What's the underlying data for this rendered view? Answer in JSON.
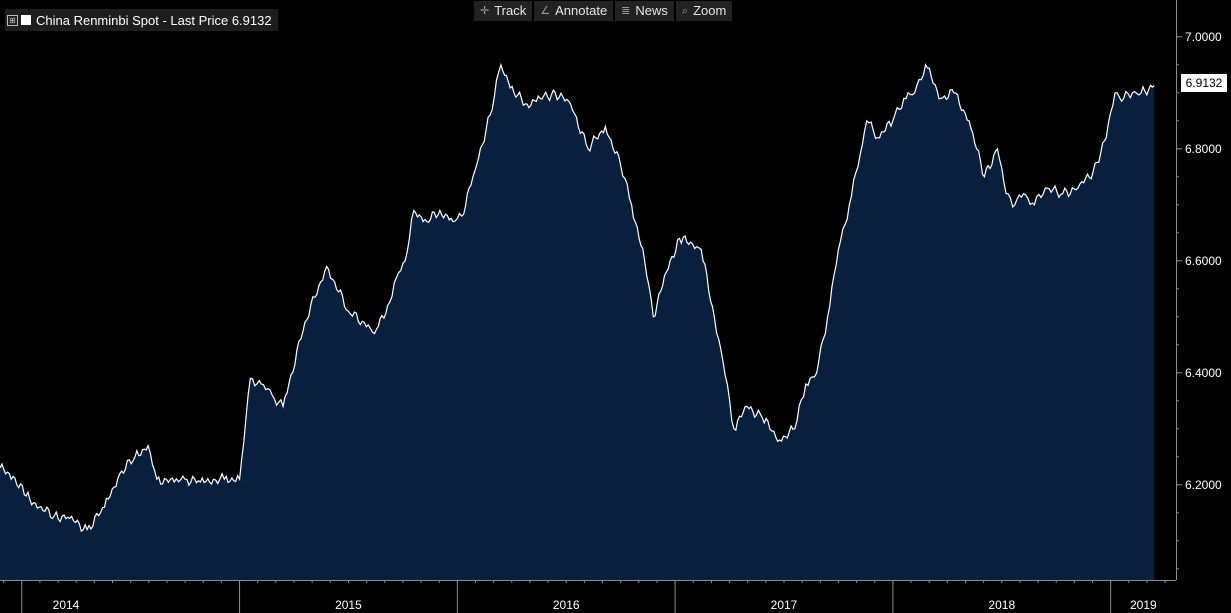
{
  "legend": {
    "expand_glyph": "⊞",
    "label": "China Renminbi Spot - Last Price 6.9132"
  },
  "toolbar": [
    {
      "icon": "✛",
      "label": "Track"
    },
    {
      "icon": "∠",
      "label": "Annotate"
    },
    {
      "icon": "≣",
      "label": "News"
    },
    {
      "icon": "⌕",
      "label": "Zoom"
    }
  ],
  "last_price_badge": "6.9132",
  "colors": {
    "background": "#000000",
    "area_fill": "#081f3d",
    "line": "#ffffff",
    "axis": "#8a8a8a"
  },
  "chart_data": {
    "type": "area",
    "title": "China Renminbi Spot - Last Price 6.9132",
    "xlabel": "",
    "ylabel": "",
    "xlim": [
      2013.9,
      2019.3
    ],
    "ylim": [
      6.03,
      7.03
    ],
    "y_ticks": [
      "6.2000",
      "6.4000",
      "6.6000",
      "6.8000",
      "7.0000"
    ],
    "x_ticks": [
      {
        "label": "2014",
        "value": 2014.0
      },
      {
        "label": "2015",
        "value": 2015.0
      },
      {
        "label": "2016",
        "value": 2016.0
      },
      {
        "label": "2017",
        "value": 2017.0
      },
      {
        "label": "2018",
        "value": 2018.0
      },
      {
        "label": "2019",
        "value": 2019.0
      }
    ],
    "grid": false,
    "last_value": 6.9132,
    "series": [
      {
        "x": [
          2013.9,
          2013.96,
          2014.02,
          2014.08,
          2014.15,
          2014.22,
          2014.3,
          2014.38,
          2014.45,
          2014.52,
          2014.58,
          2014.62,
          2014.7,
          2014.75,
          2014.82,
          2014.88,
          2014.93,
          2015.0,
          2015.05,
          2015.1,
          2015.15,
          2015.2,
          2015.3,
          2015.4,
          2015.5,
          2015.6,
          2015.62,
          2015.68,
          2015.72,
          2015.76,
          2015.8,
          2015.86,
          2015.92,
          2015.98,
          2016.02,
          2016.08,
          2016.15,
          2016.2,
          2016.26,
          2016.32,
          2016.38,
          2016.45,
          2016.52,
          2016.6,
          2016.68,
          2016.75,
          2016.8,
          2016.86,
          2016.9,
          2016.96,
          2017.02,
          2017.08,
          2017.12,
          2017.18,
          2017.22,
          2017.27,
          2017.33,
          2017.4,
          2017.48,
          2017.55,
          2017.6,
          2017.65,
          2017.7,
          2017.75,
          2017.8,
          2017.85,
          2017.88,
          2017.93,
          2018.0,
          2018.05,
          2018.1,
          2018.15,
          2018.22,
          2018.28,
          2018.35,
          2018.42,
          2018.48,
          2018.52,
          2018.56,
          2018.6,
          2018.65,
          2018.7,
          2018.78,
          2018.85,
          2018.92,
          2018.98,
          2019.02,
          2019.06,
          2019.1,
          2019.14,
          2019.2
        ],
        "values": [
          6.23,
          6.215,
          6.18,
          6.16,
          6.145,
          6.14,
          6.12,
          6.16,
          6.22,
          6.25,
          6.27,
          6.21,
          6.205,
          6.21,
          6.205,
          6.21,
          6.21,
          6.21,
          6.39,
          6.38,
          6.36,
          6.34,
          6.49,
          6.59,
          6.51,
          6.48,
          6.47,
          6.52,
          6.57,
          6.6,
          6.69,
          6.67,
          6.69,
          6.67,
          6.68,
          6.76,
          6.86,
          6.95,
          6.9,
          6.88,
          6.89,
          6.9,
          6.88,
          6.8,
          6.84,
          6.77,
          6.7,
          6.6,
          6.5,
          6.58,
          6.64,
          6.63,
          6.62,
          6.5,
          6.42,
          6.3,
          6.34,
          6.32,
          6.28,
          6.3,
          6.38,
          6.4,
          6.5,
          6.62,
          6.7,
          6.79,
          6.85,
          6.82,
          6.85,
          6.89,
          6.9,
          6.95,
          6.89,
          6.9,
          6.85,
          6.75,
          6.8,
          6.72,
          6.7,
          6.72,
          6.7,
          6.73,
          6.72,
          6.73,
          6.76,
          6.82,
          6.9,
          6.89,
          6.9,
          6.9,
          6.913
        ]
      }
    ]
  }
}
